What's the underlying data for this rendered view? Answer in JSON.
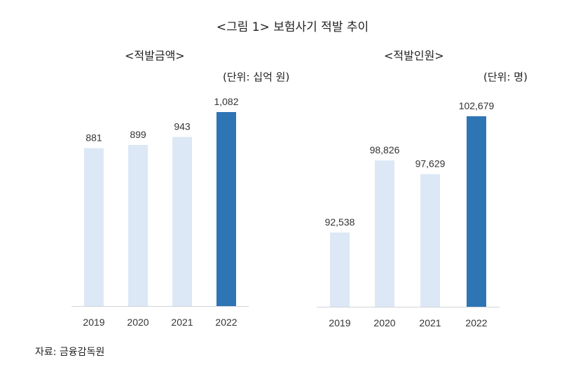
{
  "title": "<그림 1> 보험사기 적발 추이",
  "source": "자료: 금융감독원",
  "colors": {
    "bar_light": "#dce8f5",
    "bar_highlight": "#2e75b6",
    "axis": "#cfd4da"
  },
  "chart_data": [
    {
      "type": "bar",
      "title": "<적발금액>",
      "unit": "(단위: 십억 원)",
      "categories": [
        "2019",
        "2020",
        "2021",
        "2022"
      ],
      "values": [
        881,
        899,
        943,
        1082
      ],
      "data_labels": [
        "881",
        "899",
        "943",
        "1,082"
      ],
      "highlight_index": 3,
      "ylim": [
        0,
        1082
      ],
      "grid": false
    },
    {
      "type": "bar",
      "title": "<적발인원>",
      "unit": "(단위: 명)",
      "categories": [
        "2019",
        "2020",
        "2021",
        "2022"
      ],
      "values": [
        92538,
        98826,
        97629,
        102679
      ],
      "data_labels": [
        "92,538",
        "98,826",
        "97,629",
        "102,679"
      ],
      "highlight_index": 3,
      "ylim": [
        86060,
        102679
      ],
      "grid": false
    }
  ]
}
